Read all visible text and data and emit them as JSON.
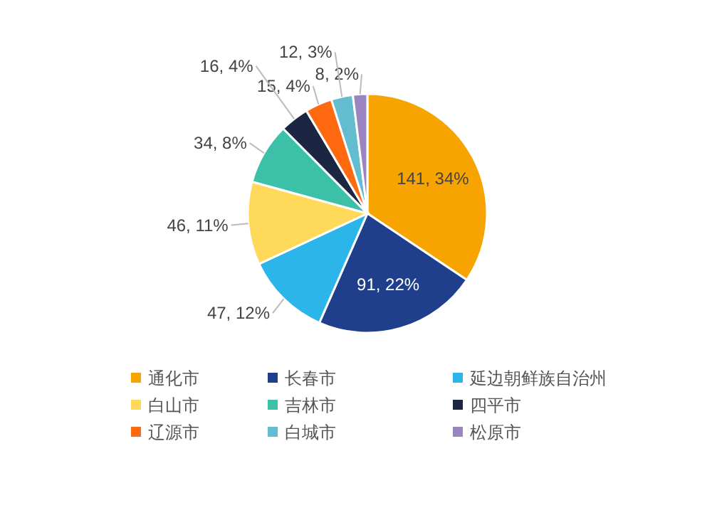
{
  "chart_data": {
    "type": "pie",
    "categories": [
      "通化市",
      "长春市",
      "延边朝鲜族自治州",
      "白山市",
      "吉林市",
      "四平市",
      "辽源市",
      "白城市",
      "松原市"
    ],
    "values": [
      141,
      91,
      47,
      46,
      34,
      16,
      15,
      12,
      8
    ],
    "colors": [
      "#f7a400",
      "#1f3f8c",
      "#2cb5e8",
      "#ffd95a",
      "#3cc0a8",
      "#1c2541",
      "#ff6a10",
      "#63bcd0",
      "#9b85c0"
    ],
    "value_labels": [
      "141, 34%",
      "91, 22%",
      "47, 12%",
      "46, 11%",
      "34, 8%",
      "16, 4%",
      "15, 4%",
      "12, 3%",
      "8, 2%"
    ],
    "legend": "bottom"
  }
}
